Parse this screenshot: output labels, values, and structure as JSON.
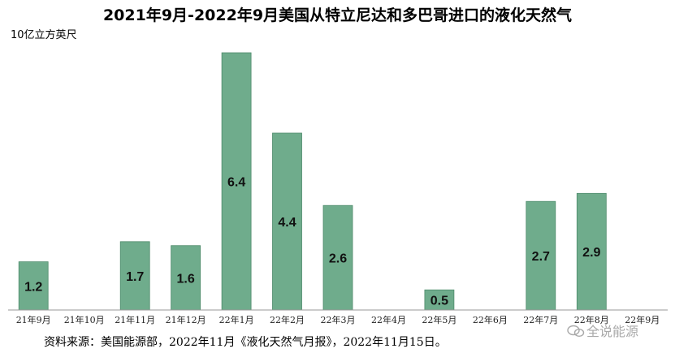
{
  "chart_data": {
    "type": "bar",
    "title": "2021年9月-2022年9月美国从特立尼达和多巴哥进口的液化天然气",
    "ylabel": "10亿立方英尺",
    "xlabel": "",
    "categories": [
      "21年9月",
      "21年10月",
      "21年11月",
      "21年12月",
      "22年1月",
      "22年2月",
      "22年3月",
      "22年4月",
      "22年5月",
      "22年6月",
      "22年7月",
      "22年8月",
      "22年9月"
    ],
    "values": [
      1.2,
      null,
      1.7,
      1.6,
      6.4,
      4.4,
      2.6,
      null,
      0.5,
      null,
      2.7,
      2.9,
      null
    ],
    "value_labels": [
      "1.2",
      "",
      "1.7",
      "1.6",
      "6.4",
      "4.4",
      "2.6",
      "",
      "0.5",
      "",
      "2.7",
      "2.9",
      ""
    ],
    "ylim": [
      0,
      6.5
    ],
    "grid": false,
    "bar_color": "#6fac8c"
  },
  "source": "资料来源：美国能源部，2022年11月《液化天然气月报》，2022年11月15日。",
  "watermark": "全说能源",
  "colors": {
    "bar": "#6fac8c",
    "bar_border": "#4d8a6a",
    "axis": "#999999"
  }
}
